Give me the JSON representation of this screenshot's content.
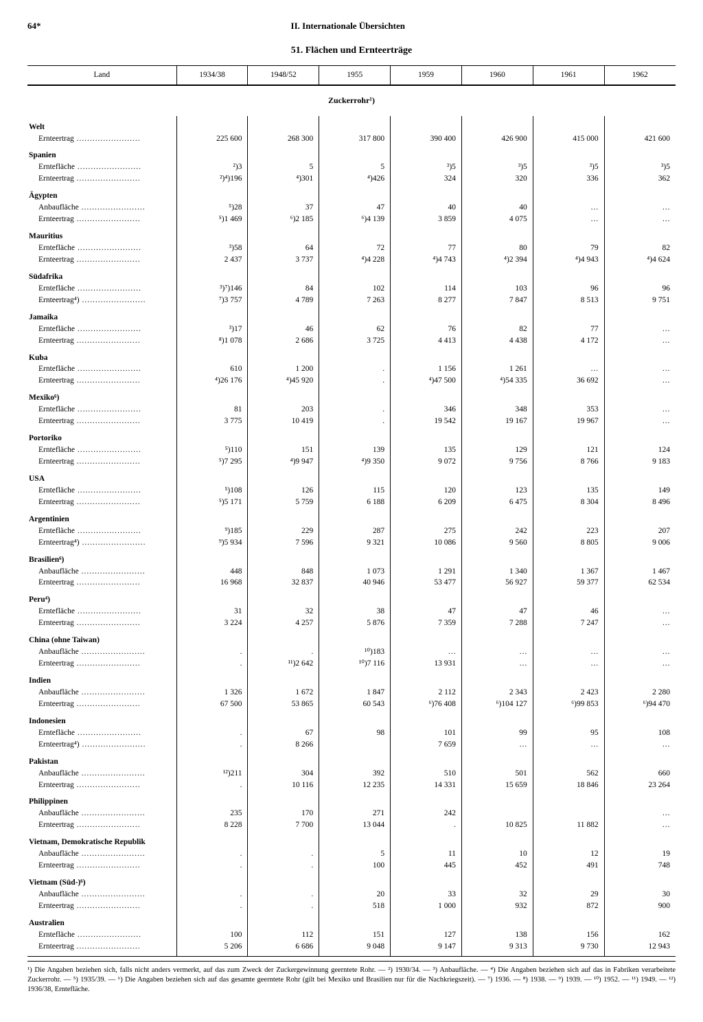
{
  "page_number": "64*",
  "section": "II. Internationale Übersichten",
  "table_title": "51. Flächen und Ernteerträge",
  "columns": [
    "Land",
    "1934/38",
    "1948/52",
    "1955",
    "1959",
    "1960",
    "1961",
    "1962"
  ],
  "subheading": "Zuckerrohr¹)",
  "countries": [
    {
      "name": "Welt",
      "rows": [
        {
          "label": "Ernteertrag",
          "v": [
            "225 600",
            "268 300",
            "317 800",
            "390 400",
            "426 900",
            "415 000",
            "421 600"
          ]
        }
      ]
    },
    {
      "name": "Spanien",
      "rows": [
        {
          "label": "Erntefläche",
          "v": [
            "²)3",
            "5",
            "5",
            "³)5",
            "³)5",
            "³)5",
            "³)5"
          ]
        },
        {
          "label": "Ernteertrag",
          "v": [
            "²)⁴)196",
            "⁴)301",
            "⁴)426",
            "324",
            "320",
            "336",
            "362"
          ]
        }
      ]
    },
    {
      "name": "Ägypten",
      "rows": [
        {
          "label": "Anbaufläche",
          "v": [
            "⁵)28",
            "37",
            "47",
            "40",
            "40",
            "…",
            "…"
          ]
        },
        {
          "label": "Ernteertrag",
          "v": [
            "⁵)1 469",
            "⁶)2 185",
            "⁶)4 139",
            "3 859",
            "4 075",
            "…",
            "…"
          ]
        }
      ]
    },
    {
      "name": "Mauritius",
      "rows": [
        {
          "label": "Erntefläche",
          "v": [
            "³)58",
            "64",
            "72",
            "77",
            "80",
            "79",
            "82"
          ]
        },
        {
          "label": "Ernteertrag",
          "v": [
            "2 437",
            "3 737",
            "⁴)4 228",
            "⁴)4 743",
            "⁴)2 394",
            "⁴)4 943",
            "⁴)4 624"
          ]
        }
      ]
    },
    {
      "name": "Südafrika",
      "rows": [
        {
          "label": "Erntefläche",
          "v": [
            "³)⁷)146",
            "84",
            "102",
            "114",
            "103",
            "96",
            "96"
          ]
        },
        {
          "label": "Ernteertrag⁴)",
          "v": [
            "⁷)3 757",
            "4 789",
            "7 263",
            "8 277",
            "7 847",
            "8 513",
            "9 751"
          ]
        }
      ]
    },
    {
      "name": "Jamaika",
      "rows": [
        {
          "label": "Erntefläche",
          "v": [
            "³)17",
            "46",
            "62",
            "76",
            "82",
            "77",
            "…"
          ]
        },
        {
          "label": "Ernteertrag",
          "v": [
            "⁸)1 078",
            "2 686",
            "3 725",
            "4 413",
            "4 438",
            "4 172",
            "…"
          ]
        }
      ]
    },
    {
      "name": "Kuba",
      "rows": [
        {
          "label": "Erntefläche",
          "v": [
            "610",
            "1 200",
            ".",
            "1 156",
            "1 261",
            "…",
            "…"
          ]
        },
        {
          "label": "Ernteertrag",
          "v": [
            "⁴)26 176",
            "⁴)45 920",
            ".",
            "⁴)47 500",
            "⁴)54 335",
            "36 692",
            "…"
          ]
        }
      ]
    },
    {
      "name": "Mexiko⁶)",
      "rows": [
        {
          "label": "Erntefläche",
          "v": [
            "81",
            "203",
            ".",
            "346",
            "348",
            "353",
            "…"
          ]
        },
        {
          "label": "Ernteertrag",
          "v": [
            "3 775",
            "10 419",
            ".",
            "19 542",
            "19 167",
            "19 967",
            "…"
          ]
        }
      ]
    },
    {
      "name": "Portoriko",
      "rows": [
        {
          "label": "Erntefläche",
          "v": [
            "⁵)110",
            "151",
            "139",
            "135",
            "129",
            "121",
            "124"
          ]
        },
        {
          "label": "Ernteertrag",
          "v": [
            "⁵)7 295",
            "⁴)9 947",
            "⁴)9 350",
            "9 072",
            "9 756",
            "8 766",
            "9 183"
          ]
        }
      ]
    },
    {
      "name": "USA",
      "rows": [
        {
          "label": "Erntefläche",
          "v": [
            "⁵)108",
            "126",
            "115",
            "120",
            "123",
            "135",
            "149"
          ]
        },
        {
          "label": "Ernteertrag",
          "v": [
            "⁵)5 171",
            "5 759",
            "6 188",
            "6 209",
            "6 475",
            "8 304",
            "8 496"
          ]
        }
      ]
    },
    {
      "name": "Argentinien",
      "rows": [
        {
          "label": "Erntefläche",
          "v": [
            "⁹)185",
            "229",
            "287",
            "275",
            "242",
            "223",
            "207"
          ]
        },
        {
          "label": "Ernteertrag⁴)",
          "v": [
            "⁹)5 934",
            "7 596",
            "9 321",
            "10 086",
            "9 560",
            "8 805",
            "9 006"
          ]
        }
      ]
    },
    {
      "name": "Brasilien⁶)",
      "rows": [
        {
          "label": "Anbaufläche",
          "v": [
            "448",
            "848",
            "1 073",
            "1 291",
            "1 340",
            "1 367",
            "1 467"
          ]
        },
        {
          "label": "Ernteertrag",
          "v": [
            "16 968",
            "32 837",
            "40 946",
            "53 477",
            "56 927",
            "59 377",
            "62 534"
          ]
        }
      ]
    },
    {
      "name": "Peru⁴)",
      "rows": [
        {
          "label": "Erntefläche",
          "v": [
            "31",
            "32",
            "38",
            "47",
            "47",
            "46",
            "…"
          ]
        },
        {
          "label": "Ernteertrag",
          "v": [
            "3 224",
            "4 257",
            "5 876",
            "7 359",
            "7 288",
            "7 247",
            "…"
          ]
        }
      ]
    },
    {
      "name": "China (ohne Taiwan)",
      "rows": [
        {
          "label": "Anbaufläche",
          "v": [
            ".",
            ".",
            "¹⁰)183",
            "…",
            "…",
            "…",
            "…"
          ]
        },
        {
          "label": "Ernteertrag",
          "v": [
            ".",
            "¹¹)2 642",
            "¹⁰)7 116",
            "13 931",
            "…",
            "…",
            "…"
          ]
        }
      ]
    },
    {
      "name": "Indien",
      "rows": [
        {
          "label": "Anbaufläche",
          "v": [
            "1 326",
            "1 672",
            "1 847",
            "2 112",
            "2 343",
            "2 423",
            "2 280"
          ]
        },
        {
          "label": "Ernteertrag",
          "v": [
            "67 500",
            "53 865",
            "60 543",
            "⁶)76 408",
            "⁶)104 127",
            "⁶)99 853",
            "⁶)94 470"
          ]
        }
      ]
    },
    {
      "name": "Indonesien",
      "rows": [
        {
          "label": "Erntefläche",
          "v": [
            ".",
            "67",
            "98",
            "101",
            "99",
            "95",
            "108"
          ]
        },
        {
          "label": "Ernteertrag⁴)",
          "v": [
            ".",
            "8 266",
            "",
            "7 659",
            "…",
            "…",
            "…"
          ]
        }
      ]
    },
    {
      "name": "Pakistan",
      "rows": [
        {
          "label": "Anbaufläche",
          "v": [
            "¹²)211",
            "304",
            "392",
            "510",
            "501",
            "562",
            "660"
          ]
        },
        {
          "label": "Ernteertrag",
          "v": [
            ".",
            "10 116",
            "12 235",
            "14 331",
            "15 659",
            "18 846",
            "23 264"
          ]
        }
      ]
    },
    {
      "name": "Philippinen",
      "rows": [
        {
          "label": "Anbaufläche",
          "v": [
            "235",
            "170",
            "271",
            "242",
            "",
            "",
            "…"
          ]
        },
        {
          "label": "Ernteertrag",
          "v": [
            "8 228",
            "7 700",
            "13 044",
            ".",
            "10 825",
            "11 882",
            "…"
          ]
        }
      ]
    },
    {
      "name": "Vietnam, Demokratische Republik",
      "rows": [
        {
          "label": "Anbaufläche",
          "v": [
            ".",
            ".",
            "5",
            "11",
            "10",
            "12",
            "19"
          ]
        },
        {
          "label": "Ernteertrag",
          "v": [
            ".",
            ".",
            "100",
            "445",
            "452",
            "491",
            "748"
          ]
        }
      ]
    },
    {
      "name": "Vietnam (Süd-)⁶)",
      "rows": [
        {
          "label": "Anbaufläche",
          "v": [
            ".",
            ".",
            "20",
            "33",
            "32",
            "29",
            "30"
          ]
        },
        {
          "label": "Ernteertrag",
          "v": [
            ".",
            ".",
            "518",
            "1 000",
            "932",
            "872",
            "900"
          ]
        }
      ]
    },
    {
      "name": "Australien",
      "rows": [
        {
          "label": "Erntefläche",
          "v": [
            "100",
            "112",
            "151",
            "127",
            "138",
            "156",
            "162"
          ]
        },
        {
          "label": "Ernteertrag",
          "v": [
            "5 206",
            "6 686",
            "9 048",
            "9 147",
            "9 313",
            "9 730",
            "12 943"
          ]
        }
      ]
    }
  ],
  "footnotes": "¹) Die Angaben beziehen sich, falls nicht anders vermerkt, auf das zum Zweck der Zuckergewinnung geerntete Rohr. — ²) 1930/34. — ³) Anbaufläche. — ⁴) Die Angaben beziehen sich auf das in Fabriken verarbeitete Zuckerrohr. — ⁵) 1935/39. — ⁶) Die Angaben beziehen sich auf das gesamte geerntete Rohr (gilt bei Mexiko und Brasilien nur für die Nachkriegszeit). — ⁷) 1936. — ⁸) 1938. — ⁹) 1939. — ¹⁰) 1952. — ¹¹) 1949. — ¹²) 1936/38, Erntefläche."
}
